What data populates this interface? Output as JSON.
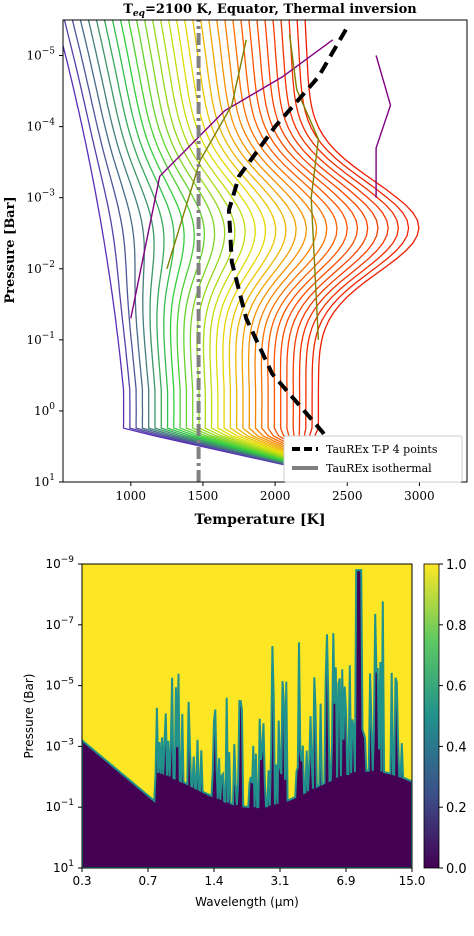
{
  "chart_data": [
    {
      "type": "line",
      "title_main": "T",
      "title_sub": "eq",
      "title_rest": "=2100 K, Equator, Thermal inversion",
      "xlabel": "Temperature [K]",
      "ylabel": "Pressure [Bar]",
      "xlim": [
        530,
        3330
      ],
      "ylim_log10": [
        1,
        -5.5
      ],
      "yscale": "log",
      "y_inverted": true,
      "x_ticks": [
        "1000",
        "1500",
        "2000",
        "2500",
        "3000"
      ],
      "y_ticks": [
        {
          "base": "10",
          "exp": "−5"
        },
        {
          "base": "10",
          "exp": "−4"
        },
        {
          "base": "10",
          "exp": "−3"
        },
        {
          "base": "10",
          "exp": "−2"
        },
        {
          "base": "10",
          "exp": "−1"
        },
        {
          "base": "10",
          "exp": "0"
        },
        {
          "base": "10",
          "exp": "1"
        }
      ],
      "legend": {
        "position": "lower-right",
        "entries": [
          {
            "label": "TauREx T-P 4 points",
            "color": "#000000",
            "style": "dashed"
          },
          {
            "label": "TauREx isothermal",
            "color": "#808080",
            "style": "solid"
          }
        ]
      },
      "series": [
        {
          "style": "dashed",
          "color": "#000000",
          "points": [
            [
              2550,
              10
            ],
            [
              2330,
              2
            ],
            [
              1980,
              0.3
            ],
            [
              1800,
              0.05
            ],
            [
              1700,
              0.008
            ],
            [
              1680,
              0.0015
            ],
            [
              1750,
              0.0005
            ],
            [
              2000,
              0.0001
            ],
            [
              2300,
              2e-05
            ],
            [
              2500,
              4e-06
            ]
          ]
        },
        {
          "style": "dashdot",
          "color": "#808080",
          "points": [
            [
              1470,
              10
            ],
            [
              1470,
              3e-06
            ]
          ]
        }
      ],
      "profile_family": {
        "count": 32,
        "color_gradient": [
          "#5a2db8",
          "#2ecc40",
          "#e8e000",
          "#ff5a00",
          "#ee1c00"
        ],
        "note_colors_upper": [
          "#800080",
          "#808000"
        ]
      }
    },
    {
      "type": "heatmap",
      "xlabel": "Wavelength (μm)",
      "ylabel": "Pressure (Bar)",
      "x_ticks": [
        "0.3",
        "0.7",
        "1.4",
        "3.1",
        "6.9",
        "15.0"
      ],
      "y_ticks": [
        {
          "base": "10",
          "exp": "−9"
        },
        {
          "base": "10",
          "exp": "−7"
        },
        {
          "base": "10",
          "exp": "−5"
        },
        {
          "base": "10",
          "exp": "−3"
        },
        {
          "base": "10",
          "exp": "−1"
        },
        {
          "base": "10",
          "exp": "1"
        }
      ],
      "colorbar": {
        "colormap": "viridis",
        "range": [
          0,
          1
        ],
        "ticks": [
          "0.0",
          "0.2",
          "0.4",
          "0.6",
          "0.8",
          "1.0"
        ],
        "colors": [
          "#440154",
          "#3b528b",
          "#21918c",
          "#5ec962",
          "#fde725"
        ]
      }
    }
  ]
}
